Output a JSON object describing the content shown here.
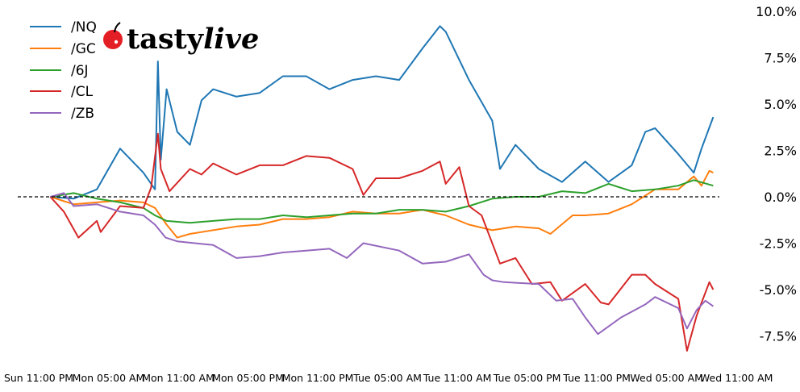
{
  "logo": {
    "brand": "tastylive",
    "part1": "tasty",
    "part2": "live",
    "cherry_color": "#e31e24"
  },
  "chart_data": {
    "type": "line",
    "title": "",
    "xlabel": "",
    "ylabel": "",
    "ylim": [
      -9.0,
      10.0
    ],
    "y_axis_side": "right",
    "y_ticks": [
      "10.0%",
      "7.5%",
      "5.0%",
      "2.5%",
      "0.0%",
      "-2.5%",
      "-5.0%",
      "-7.5%"
    ],
    "y_tick_values": [
      10,
      7.5,
      5,
      2.5,
      0,
      -2.5,
      -5,
      -7.5
    ],
    "x_ticks": [
      "Sun 11:00 PM",
      "Mon 05:00 AM",
      "Mon 11:00 AM",
      "Mon 05:00 PM",
      "Mon 11:00 PM",
      "Tue 05:00 AM",
      "Tue 11:00 AM",
      "Tue 05:00 PM",
      "Tue 11:00 PM",
      "Wed 05:00 AM",
      "Wed 11:00 AM"
    ],
    "x_tick_times": [
      "Sun 23:00",
      "Mon 05:00",
      "Mon 11:00",
      "Mon 17:00",
      "Mon 23:00",
      "Tue 05:00",
      "Tue 11:00",
      "Tue 17:00",
      "Tue 23:00",
      "Wed 05:00",
      "Wed 11:00"
    ],
    "reference_line": {
      "value": 0,
      "style": "dashed",
      "color": "#000000"
    },
    "grid": false,
    "legend_position": "top-left",
    "series": [
      {
        "name": "/NQ",
        "color": "#1f77b4",
        "points": [
          [
            "Mon 00:00",
            0
          ],
          [
            "Mon 02:00",
            -0.1
          ],
          [
            "Mon 04:00",
            0.4
          ],
          [
            "Mon 06:00",
            2.6
          ],
          [
            "Mon 08:00",
            1.3
          ],
          [
            "Mon 09:00",
            0.4
          ],
          [
            "Mon 09:15",
            7.3
          ],
          [
            "Mon 09:30",
            2.0
          ],
          [
            "Mon 10:00",
            5.8
          ],
          [
            "Mon 10:55",
            3.5
          ],
          [
            "Mon 12:00",
            2.8
          ],
          [
            "Mon 13:00",
            5.2
          ],
          [
            "Mon 14:00",
            5.8
          ],
          [
            "Mon 16:00",
            5.4
          ],
          [
            "Mon 18:00",
            5.6
          ],
          [
            "Mon 20:00",
            6.5
          ],
          [
            "Mon 22:00",
            6.5
          ],
          [
            "Tue 00:00",
            5.8
          ],
          [
            "Tue 02:00",
            6.3
          ],
          [
            "Tue 04:00",
            6.5
          ],
          [
            "Tue 06:00",
            6.3
          ],
          [
            "Tue 08:00",
            8.0
          ],
          [
            "Tue 09:30",
            9.2
          ],
          [
            "Tue 10:00",
            8.9
          ],
          [
            "Tue 12:00",
            6.3
          ],
          [
            "Tue 14:00",
            4.1
          ],
          [
            "Tue 14:40",
            1.5
          ],
          [
            "Tue 16:00",
            2.8
          ],
          [
            "Tue 18:00",
            1.5
          ],
          [
            "Tue 20:00",
            0.8
          ],
          [
            "Tue 22:00",
            1.9
          ],
          [
            "Wed 00:00",
            0.8
          ],
          [
            "Wed 02:00",
            1.7
          ],
          [
            "Wed 03:10",
            3.5
          ],
          [
            "Wed 04:00",
            3.7
          ],
          [
            "Wed 06:00",
            2.3
          ],
          [
            "Wed 07:20",
            1.3
          ],
          [
            "Wed 08:00",
            2.6
          ],
          [
            "Wed 09:00",
            4.3
          ]
        ]
      },
      {
        "name": "/GC",
        "color": "#ff7f0e",
        "points": [
          [
            "Mon 00:00",
            0
          ],
          [
            "Mon 02:00",
            -0.4
          ],
          [
            "Mon 04:00",
            -0.3
          ],
          [
            "Mon 06:00",
            -0.2
          ],
          [
            "Mon 08:00",
            -0.3
          ],
          [
            "Mon 09:00",
            -0.6
          ],
          [
            "Mon 10:00",
            -1.5
          ],
          [
            "Mon 10:55",
            -2.2
          ],
          [
            "Mon 12:00",
            -2.0
          ],
          [
            "Mon 14:00",
            -1.8
          ],
          [
            "Mon 16:00",
            -1.6
          ],
          [
            "Mon 18:00",
            -1.5
          ],
          [
            "Mon 20:00",
            -1.2
          ],
          [
            "Mon 22:00",
            -1.2
          ],
          [
            "Tue 00:00",
            -1.1
          ],
          [
            "Tue 02:00",
            -0.8
          ],
          [
            "Tue 04:00",
            -0.9
          ],
          [
            "Tue 06:00",
            -0.9
          ],
          [
            "Tue 08:00",
            -0.7
          ],
          [
            "Tue 10:00",
            -1.0
          ],
          [
            "Tue 12:00",
            -1.5
          ],
          [
            "Tue 14:00",
            -1.8
          ],
          [
            "Tue 16:00",
            -1.6
          ],
          [
            "Tue 18:00",
            -1.7
          ],
          [
            "Tue 19:00",
            -2.0
          ],
          [
            "Tue 20:55",
            -1.0
          ],
          [
            "Tue 22:00",
            -1.0
          ],
          [
            "Wed 00:00",
            -0.9
          ],
          [
            "Wed 02:00",
            -0.4
          ],
          [
            "Wed 04:00",
            0.4
          ],
          [
            "Wed 06:00",
            0.4
          ],
          [
            "Wed 07:20",
            1.1
          ],
          [
            "Wed 08:00",
            0.6
          ],
          [
            "Wed 08:40",
            1.4
          ],
          [
            "Wed 09:00",
            1.3
          ]
        ]
      },
      {
        "name": "/6J",
        "color": "#2ca02c",
        "points": [
          [
            "Mon 00:00",
            0
          ],
          [
            "Mon 02:00",
            0.2
          ],
          [
            "Mon 04:00",
            -0.1
          ],
          [
            "Mon 06:00",
            -0.3
          ],
          [
            "Mon 08:00",
            -0.6
          ],
          [
            "Mon 09:00",
            -1.0
          ],
          [
            "Mon 10:00",
            -1.3
          ],
          [
            "Mon 12:00",
            -1.4
          ],
          [
            "Mon 14:00",
            -1.3
          ],
          [
            "Mon 16:00",
            -1.2
          ],
          [
            "Mon 18:00",
            -1.2
          ],
          [
            "Mon 20:00",
            -1.0
          ],
          [
            "Mon 22:00",
            -1.1
          ],
          [
            "Tue 00:00",
            -1.0
          ],
          [
            "Tue 02:00",
            -0.9
          ],
          [
            "Tue 04:00",
            -0.9
          ],
          [
            "Tue 06:00",
            -0.7
          ],
          [
            "Tue 08:00",
            -0.7
          ],
          [
            "Tue 10:00",
            -0.8
          ],
          [
            "Tue 12:00",
            -0.5
          ],
          [
            "Tue 14:00",
            -0.1
          ],
          [
            "Tue 16:00",
            0.0
          ],
          [
            "Tue 18:00",
            0.0
          ],
          [
            "Tue 20:00",
            0.3
          ],
          [
            "Tue 22:00",
            0.2
          ],
          [
            "Wed 00:00",
            0.7
          ],
          [
            "Wed 02:00",
            0.3
          ],
          [
            "Wed 04:00",
            0.4
          ],
          [
            "Wed 06:00",
            0.6
          ],
          [
            "Wed 07:20",
            0.9
          ],
          [
            "Wed 09:00",
            0.6
          ]
        ]
      },
      {
        "name": "/CL",
        "color": "#d62728",
        "points": [
          [
            "Mon 00:00",
            0
          ],
          [
            "Mon 01:10",
            -0.8
          ],
          [
            "Mon 02:25",
            -2.2
          ],
          [
            "Mon 04:00",
            -1.3
          ],
          [
            "Mon 04:20",
            -1.9
          ],
          [
            "Mon 06:00",
            -0.5
          ],
          [
            "Mon 08:00",
            -0.6
          ],
          [
            "Mon 08:40",
            0.5
          ],
          [
            "Mon 09:15",
            3.4
          ],
          [
            "Mon 09:30",
            1.5
          ],
          [
            "Mon 10:15",
            0.3
          ],
          [
            "Mon 12:00",
            1.5
          ],
          [
            "Mon 13:00",
            1.2
          ],
          [
            "Mon 14:00",
            1.8
          ],
          [
            "Mon 16:00",
            1.2
          ],
          [
            "Mon 18:00",
            1.7
          ],
          [
            "Mon 20:00",
            1.7
          ],
          [
            "Mon 22:00",
            2.2
          ],
          [
            "Tue 00:00",
            2.1
          ],
          [
            "Tue 02:00",
            1.5
          ],
          [
            "Tue 02:55",
            0.1
          ],
          [
            "Tue 04:00",
            1.0
          ],
          [
            "Tue 06:00",
            1.0
          ],
          [
            "Tue 08:00",
            1.4
          ],
          [
            "Tue 09:30",
            1.9
          ],
          [
            "Tue 10:00",
            0.7
          ],
          [
            "Tue 11:10",
            1.6
          ],
          [
            "Tue 12:00",
            -0.5
          ],
          [
            "Tue 13:05",
            -1.0
          ],
          [
            "Tue 14:40",
            -3.6
          ],
          [
            "Tue 16:00",
            -3.3
          ],
          [
            "Tue 17:25",
            -4.7
          ],
          [
            "Tue 19:00",
            -4.6
          ],
          [
            "Tue 20:00",
            -5.6
          ],
          [
            "Tue 22:00",
            -4.7
          ],
          [
            "Tue 23:20",
            -5.7
          ],
          [
            "Wed 00:00",
            -5.8
          ],
          [
            "Wed 02:00",
            -4.2
          ],
          [
            "Wed 03:10",
            -4.2
          ],
          [
            "Wed 04:00",
            -4.7
          ],
          [
            "Wed 06:00",
            -5.5
          ],
          [
            "Wed 06:45",
            -8.3
          ],
          [
            "Wed 07:35",
            -6.4
          ],
          [
            "Wed 08:40",
            -4.6
          ],
          [
            "Wed 09:00",
            -5.0
          ]
        ]
      },
      {
        "name": "/ZB",
        "color": "#9467bd",
        "points": [
          [
            "Mon 00:00",
            0
          ],
          [
            "Mon 01:10",
            0.2
          ],
          [
            "Mon 02:00",
            -0.5
          ],
          [
            "Mon 04:00",
            -0.4
          ],
          [
            "Mon 06:00",
            -0.8
          ],
          [
            "Mon 08:00",
            -1.0
          ],
          [
            "Mon 09:00",
            -1.5
          ],
          [
            "Mon 09:55",
            -2.2
          ],
          [
            "Mon 10:55",
            -2.4
          ],
          [
            "Mon 14:00",
            -2.6
          ],
          [
            "Mon 16:00",
            -3.3
          ],
          [
            "Mon 18:00",
            -3.2
          ],
          [
            "Mon 20:00",
            -3.0
          ],
          [
            "Mon 22:00",
            -2.9
          ],
          [
            "Tue 00:00",
            -2.8
          ],
          [
            "Tue 01:30",
            -3.3
          ],
          [
            "Tue 02:55",
            -2.5
          ],
          [
            "Tue 06:00",
            -2.9
          ],
          [
            "Tue 08:00",
            -3.6
          ],
          [
            "Tue 10:00",
            -3.5
          ],
          [
            "Tue 12:00",
            -3.1
          ],
          [
            "Tue 13:15",
            -4.2
          ],
          [
            "Tue 14:00",
            -4.5
          ],
          [
            "Tue 15:00",
            -4.6
          ],
          [
            "Tue 18:00",
            -4.7
          ],
          [
            "Tue 19:30",
            -5.6
          ],
          [
            "Tue 20:55",
            -5.5
          ],
          [
            "Tue 22:00",
            -6.5
          ],
          [
            "Tue 23:05",
            -7.4
          ],
          [
            "Wed 01:05",
            -6.5
          ],
          [
            "Wed 03:10",
            -5.8
          ],
          [
            "Wed 04:00",
            -5.4
          ],
          [
            "Wed 06:00",
            -6.0
          ],
          [
            "Wed 06:45",
            -7.1
          ],
          [
            "Wed 07:35",
            -6.1
          ],
          [
            "Wed 08:20",
            -5.6
          ],
          [
            "Wed 09:00",
            -5.9
          ]
        ]
      }
    ]
  }
}
